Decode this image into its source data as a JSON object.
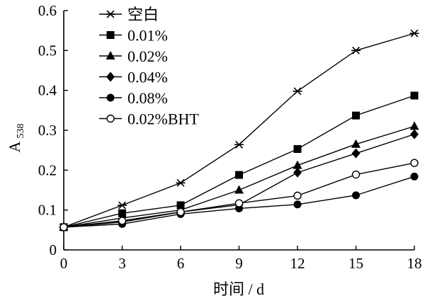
{
  "chart_data": {
    "type": "line",
    "xlabel": "时间 / d",
    "ylabel": "A",
    "ylabel_sub": "538",
    "xlim": [
      0,
      18
    ],
    "ylim": [
      0,
      0.6
    ],
    "x": [
      0,
      3,
      6,
      9,
      12,
      15,
      18
    ],
    "x_ticks": [
      "0",
      "3",
      "6",
      "9",
      "12",
      "15",
      "18"
    ],
    "y_ticks": [
      0,
      0.1,
      0.2,
      0.3,
      0.4,
      0.5,
      0.6
    ],
    "y_tick_labels": [
      "0",
      "0.1",
      "0.2",
      "0.3",
      "0.4",
      "0.5",
      "0.6"
    ],
    "grid": false,
    "legend_position": "top-left",
    "series": [
      {
        "name": "空白",
        "marker": "asterisk",
        "values": [
          0.057,
          0.112,
          0.168,
          0.264,
          0.398,
          0.5,
          0.543
        ]
      },
      {
        "name": "0.01%",
        "marker": "square",
        "values": [
          0.057,
          0.092,
          0.112,
          0.188,
          0.253,
          0.337,
          0.387
        ]
      },
      {
        "name": "0.02%",
        "marker": "triangle",
        "values": [
          0.057,
          0.08,
          0.1,
          0.15,
          0.212,
          0.265,
          0.31
        ]
      },
      {
        "name": "0.04%",
        "marker": "diamond",
        "values": [
          0.057,
          0.07,
          0.095,
          0.113,
          0.194,
          0.242,
          0.29
        ]
      },
      {
        "name": "0.08%",
        "marker": "filled-circle",
        "values": [
          0.057,
          0.065,
          0.09,
          0.104,
          0.114,
          0.137,
          0.184
        ]
      },
      {
        "name": "0.02%BHT",
        "marker": "open-circle",
        "values": [
          0.057,
          0.073,
          0.095,
          0.117,
          0.136,
          0.189,
          0.218
        ]
      }
    ]
  }
}
